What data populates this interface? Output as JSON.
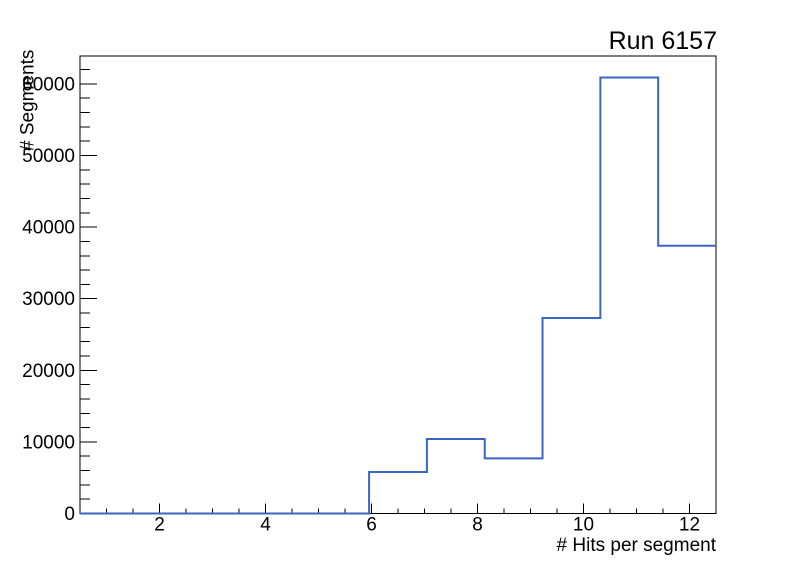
{
  "window": {
    "background_color": "#ffffff"
  },
  "chart_data": {
    "type": "histogram-step",
    "title": "Run 6157",
    "xlabel": "# Hits per segment",
    "ylabel": "# Segments",
    "xlim": [
      0.5,
      12.5
    ],
    "ylim": [
      0,
      63900
    ],
    "bin_edges": [
      0.5,
      1.5909,
      2.6818,
      3.7727,
      4.8636,
      5.9545,
      7.0455,
      8.1364,
      9.2273,
      10.3182,
      11.4091,
      12.5
    ],
    "values": [
      0,
      0,
      0,
      0,
      0,
      5800,
      10400,
      7700,
      27300,
      60900,
      37400
    ],
    "x_major_ticks": [
      2,
      4,
      6,
      8,
      10,
      12
    ],
    "x_minor_tick_step": 0.5,
    "y_major_ticks": [
      0,
      10000,
      20000,
      30000,
      40000,
      50000,
      60000
    ],
    "y_minor_tick_step": 2000,
    "grid": false,
    "legend": null,
    "line_color": "#3a65c5",
    "axis_color": "#000000",
    "text_color": "#000000"
  }
}
